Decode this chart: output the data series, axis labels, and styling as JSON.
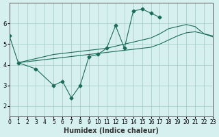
{
  "xlabel": "Humidex (Indice chaleur)",
  "ylabel": "",
  "bg_color": "#d6efef",
  "grid_color": "#a0c8c8",
  "line_color": "#1a6b5a",
  "xlim": [
    0,
    23
  ],
  "ylim": [
    1.5,
    7.0
  ],
  "xticks": [
    0,
    1,
    2,
    3,
    4,
    5,
    6,
    7,
    8,
    9,
    10,
    11,
    12,
    13,
    14,
    15,
    16,
    17,
    18,
    19,
    20,
    21,
    22,
    23
  ],
  "yticks": [
    2,
    3,
    4,
    5,
    6
  ],
  "series1_x": [
    0,
    1,
    2,
    3,
    4,
    5,
    6,
    7,
    8,
    9,
    10,
    11,
    12,
    13,
    14,
    15,
    16,
    17,
    18,
    19,
    20,
    21,
    22,
    23
  ],
  "series1_y": [
    5.4,
    4.1,
    null,
    3.8,
    null,
    3.0,
    3.2,
    2.4,
    3.0,
    4.4,
    4.5,
    4.8,
    5.9,
    4.8,
    6.6,
    6.7,
    6.5,
    6.3,
    null,
    null,
    null,
    null,
    null,
    null
  ],
  "series2_x": [
    1,
    2,
    3,
    4,
    5,
    6,
    7,
    8,
    9,
    10,
    11,
    12,
    13,
    14,
    15,
    16,
    17,
    18,
    19,
    20,
    21,
    22,
    23
  ],
  "series2_y": [
    4.1,
    4.15,
    4.2,
    4.25,
    4.3,
    4.35,
    4.4,
    4.45,
    4.5,
    4.55,
    4.6,
    4.65,
    4.7,
    4.75,
    4.8,
    4.85,
    5.0,
    5.2,
    5.4,
    5.55,
    5.6,
    5.5,
    5.4
  ],
  "series3_x": [
    1,
    2,
    3,
    4,
    5,
    6,
    7,
    8,
    9,
    10,
    11,
    12,
    13,
    14,
    15,
    16,
    17,
    18,
    19,
    20,
    21,
    22,
    23
  ],
  "series3_y": [
    4.1,
    4.2,
    4.3,
    4.4,
    4.5,
    4.55,
    4.6,
    4.65,
    4.7,
    4.75,
    4.8,
    4.9,
    5.0,
    5.1,
    5.2,
    5.3,
    5.5,
    5.75,
    5.85,
    5.95,
    5.85,
    5.5,
    5.35
  ]
}
